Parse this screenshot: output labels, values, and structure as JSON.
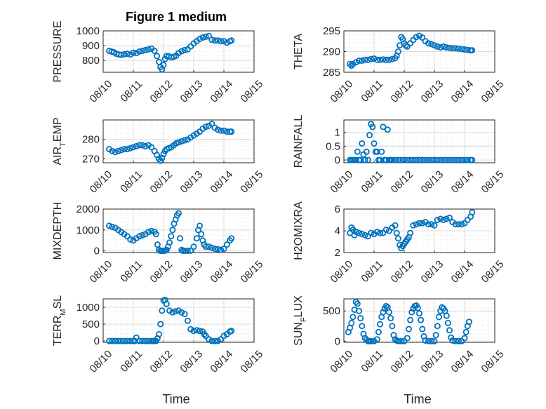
{
  "figure": {
    "title": "Figure 1 medium",
    "marker_color": "#0072BD",
    "x_ticks": [
      "08/10",
      "08/11",
      "08/12",
      "08/13",
      "08/14",
      "08/15"
    ],
    "xlabel": "Time"
  },
  "chart_data": [
    {
      "type": "scatter",
      "ylabel": "PRESSURE",
      "ylabel_sub": "",
      "ylabel_tail": "",
      "xlim": [
        0,
        5
      ],
      "ylim": [
        720,
        1000
      ],
      "yticks": [
        800,
        900,
        1000
      ],
      "x": [
        0.2,
        0.28,
        0.36,
        0.44,
        0.52,
        0.6,
        0.7,
        0.8,
        0.9,
        1.0,
        1.1,
        1.2,
        1.3,
        1.4,
        1.5,
        1.6,
        1.7,
        1.78,
        1.85,
        1.9,
        1.95,
        2.0,
        2.05,
        2.1,
        2.18,
        2.26,
        2.34,
        2.42,
        2.5,
        2.6,
        2.7,
        2.8,
        2.9,
        3.0,
        3.1,
        3.2,
        3.3,
        3.4,
        3.5,
        3.6,
        3.7,
        3.8,
        3.9,
        4.0,
        4.1,
        4.2,
        4.25
      ],
      "y": [
        865,
        860,
        855,
        845,
        840,
        838,
        842,
        845,
        840,
        852,
        850,
        860,
        865,
        870,
        875,
        880,
        865,
        830,
        790,
        755,
        740,
        770,
        810,
        830,
        828,
        820,
        825,
        832,
        850,
        862,
        870,
        875,
        895,
        915,
        930,
        945,
        955,
        960,
        965,
        940,
        935,
        935,
        930,
        930,
        920,
        930,
        935
      ]
    },
    {
      "type": "scatter",
      "ylabel": "THETA",
      "ylabel_sub": "",
      "ylabel_tail": "",
      "xlim": [
        0,
        5
      ],
      "ylim": [
        285,
        295
      ],
      "yticks": [
        285,
        290,
        295
      ],
      "x": [
        0.2,
        0.25,
        0.3,
        0.4,
        0.5,
        0.6,
        0.7,
        0.8,
        0.9,
        1.0,
        1.1,
        1.2,
        1.3,
        1.4,
        1.5,
        1.6,
        1.7,
        1.75,
        1.8,
        1.85,
        1.9,
        1.95,
        2.0,
        2.05,
        2.1,
        2.2,
        2.3,
        2.4,
        2.5,
        2.6,
        2.7,
        2.8,
        2.9,
        3.0,
        3.1,
        3.2,
        3.3,
        3.4,
        3.5,
        3.6,
        3.7,
        3.8,
        3.9,
        4.0,
        4.1,
        4.2,
        4.25
      ],
      "y": [
        287,
        286.6,
        287,
        287.4,
        287.8,
        287.8,
        288,
        288,
        288.2,
        288.3,
        288,
        288,
        288.1,
        288,
        288,
        288.2,
        288.4,
        289,
        290,
        291.5,
        293.5,
        293,
        292,
        291.5,
        291.2,
        292,
        292.8,
        293.5,
        293.8,
        293.4,
        292.5,
        292,
        291.8,
        291.5,
        291.2,
        291,
        291.2,
        291,
        290.9,
        290.8,
        290.8,
        290.7,
        290.6,
        290.5,
        290.4,
        290.3,
        290.3
      ]
    },
    {
      "type": "scatter",
      "ylabel": "AIR",
      "ylabel_sub": "T",
      "ylabel_tail": "EMP",
      "xlim": [
        0,
        5
      ],
      "ylim": [
        268,
        290
      ],
      "yticks": [
        270,
        280
      ],
      "x": [
        0.2,
        0.3,
        0.4,
        0.5,
        0.6,
        0.7,
        0.8,
        0.9,
        1.0,
        1.1,
        1.2,
        1.3,
        1.4,
        1.5,
        1.6,
        1.7,
        1.78,
        1.85,
        1.9,
        1.95,
        2.0,
        2.05,
        2.1,
        2.18,
        2.26,
        2.34,
        2.42,
        2.5,
        2.6,
        2.7,
        2.8,
        2.9,
        3.0,
        3.1,
        3.2,
        3.3,
        3.4,
        3.5,
        3.6,
        3.7,
        3.8,
        3.9,
        4.0,
        4.1,
        4.2,
        4.25
      ],
      "y": [
        275,
        274,
        273.5,
        274,
        274.5,
        275,
        275,
        275.5,
        276,
        276.5,
        277,
        277,
        276.5,
        277,
        276,
        274,
        272,
        270,
        269,
        270.5,
        272.5,
        274,
        275,
        275.5,
        276,
        277,
        278,
        278.5,
        279,
        279.5,
        280,
        281,
        282,
        283,
        284,
        285.5,
        286.5,
        287,
        288,
        286,
        285,
        284.5,
        284.5,
        284,
        284,
        284
      ]
    },
    {
      "type": "scatter",
      "ylabel": "RAINFALL",
      "ylabel_sub": "",
      "ylabel_tail": "",
      "xlim": [
        0,
        5
      ],
      "ylim": [
        -0.1,
        1.45
      ],
      "yticks": [
        0,
        0.5,
        1
      ],
      "x": [
        0.2,
        0.25,
        0.3,
        0.35,
        0.4,
        0.45,
        0.5,
        0.55,
        0.6,
        0.65,
        0.7,
        0.75,
        0.8,
        0.85,
        0.9,
        0.95,
        1.0,
        1.05,
        1.1,
        1.15,
        1.2,
        1.25,
        1.3,
        1.35,
        1.4,
        1.45,
        1.5,
        1.55,
        1.6,
        1.7,
        1.8,
        1.9,
        2.0,
        2.1,
        2.2,
        2.3,
        2.4,
        2.5,
        2.6,
        2.7,
        2.8,
        2.9,
        3.0,
        3.1,
        3.2,
        3.3,
        3.4,
        3.5,
        3.6,
        3.7,
        3.8,
        3.9,
        4.0,
        4.1,
        4.2,
        4.25
      ],
      "y": [
        0,
        0,
        0,
        0,
        0,
        0.3,
        0,
        0,
        0.6,
        0.2,
        0,
        0.3,
        0,
        0.9,
        1.3,
        1.2,
        0.6,
        0.3,
        0.3,
        0,
        0,
        0.3,
        1.2,
        0,
        0,
        1.1,
        0,
        0,
        0,
        0,
        0,
        0,
        0,
        0,
        0,
        0,
        0,
        0,
        0,
        0,
        0,
        0,
        0,
        0,
        0,
        0,
        0,
        0,
        0,
        0,
        0,
        0,
        0,
        0,
        0,
        0
      ]
    },
    {
      "type": "scatter",
      "ylabel": "MIXDEPTH",
      "ylabel_sub": "",
      "ylabel_tail": "",
      "xlim": [
        0,
        5
      ],
      "ylim": [
        -80,
        2000
      ],
      "yticks": [
        0,
        1000,
        2000
      ],
      "x": [
        0.2,
        0.3,
        0.4,
        0.5,
        0.6,
        0.7,
        0.8,
        0.9,
        1.0,
        1.1,
        1.2,
        1.3,
        1.4,
        1.5,
        1.6,
        1.7,
        1.75,
        1.8,
        1.85,
        1.9,
        1.95,
        2.0,
        2.05,
        2.1,
        2.15,
        2.2,
        2.25,
        2.3,
        2.35,
        2.4,
        2.45,
        2.5,
        2.55,
        2.6,
        2.65,
        2.7,
        2.8,
        2.9,
        3.0,
        3.1,
        3.15,
        3.2,
        3.25,
        3.3,
        3.35,
        3.4,
        3.5,
        3.6,
        3.7,
        3.8,
        3.9,
        4.0,
        4.1,
        4.2,
        4.25
      ],
      "y": [
        1200,
        1150,
        1100,
        1000,
        900,
        800,
        700,
        550,
        500,
        600,
        700,
        750,
        800,
        900,
        950,
        920,
        800,
        300,
        50,
        0,
        0,
        0,
        10,
        50,
        200,
        400,
        700,
        1000,
        1300,
        1500,
        1700,
        1800,
        600,
        50,
        0,
        0,
        0,
        10,
        200,
        600,
        1000,
        1200,
        800,
        500,
        300,
        200,
        200,
        150,
        100,
        80,
        50,
        100,
        300,
        500,
        600
      ]
    },
    {
      "type": "scatter",
      "ylabel": "H2OMIXRA",
      "ylabel_sub": "",
      "ylabel_tail": "",
      "xlim": [
        0,
        5
      ],
      "ylim": [
        2,
        6
      ],
      "yticks": [
        2,
        4,
        6
      ],
      "x": [
        0.2,
        0.25,
        0.3,
        0.35,
        0.4,
        0.5,
        0.6,
        0.7,
        0.8,
        0.9,
        1.0,
        1.1,
        1.2,
        1.3,
        1.4,
        1.5,
        1.6,
        1.7,
        1.75,
        1.8,
        1.85,
        1.9,
        1.95,
        2.0,
        2.05,
        2.1,
        2.15,
        2.2,
        2.3,
        2.4,
        2.5,
        2.6,
        2.7,
        2.8,
        2.9,
        3.0,
        3.1,
        3.2,
        3.3,
        3.4,
        3.5,
        3.6,
        3.7,
        3.8,
        3.9,
        4.0,
        4.1,
        4.2,
        4.25
      ],
      "y": [
        3.8,
        4.3,
        4.1,
        3.6,
        3.9,
        3.8,
        3.7,
        3.6,
        3.5,
        3.8,
        3.7,
        3.9,
        3.8,
        3.8,
        4.1,
        4,
        4.3,
        4.5,
        3.8,
        3.3,
        2.7,
        2.4,
        2.6,
        2.8,
        3,
        3.2,
        3.4,
        3.8,
        4.5,
        4.6,
        4.7,
        4.7,
        4.8,
        4.6,
        4.6,
        4.5,
        5,
        5.1,
        5,
        5.1,
        5.2,
        4.8,
        4.6,
        4.6,
        4.6,
        4.7,
        5,
        5.3,
        5.7
      ]
    },
    {
      "type": "scatter",
      "ylabel": "TERR",
      "ylabel_sub": "M",
      "ylabel_tail": "SL",
      "xlim": [
        0,
        5
      ],
      "ylim": [
        -40,
        1250
      ],
      "yticks": [
        0,
        500,
        1000
      ],
      "x": [
        0.2,
        0.3,
        0.4,
        0.5,
        0.6,
        0.7,
        0.8,
        0.9,
        1.0,
        1.05,
        1.1,
        1.2,
        1.3,
        1.4,
        1.5,
        1.6,
        1.65,
        1.7,
        1.75,
        1.8,
        1.85,
        1.9,
        1.95,
        2.0,
        2.05,
        2.1,
        2.2,
        2.3,
        2.4,
        2.5,
        2.6,
        2.7,
        2.8,
        2.9,
        3.0,
        3.1,
        3.2,
        3.3,
        3.35,
        3.4,
        3.5,
        3.6,
        3.7,
        3.8,
        3.9,
        4.0,
        4.1,
        4.2,
        4.25
      ],
      "y": [
        0,
        0,
        0,
        0,
        0,
        0,
        0,
        0,
        0,
        0,
        100,
        0,
        0,
        0,
        0,
        0,
        0,
        0,
        0,
        80,
        200,
        500,
        900,
        1200,
        1220,
        1100,
        900,
        850,
        880,
        900,
        850,
        800,
        600,
        350,
        300,
        320,
        300,
        280,
        200,
        150,
        50,
        0,
        0,
        0,
        50,
        150,
        200,
        280,
        300
      ]
    },
    {
      "type": "scatter",
      "ylabel": "SUN",
      "ylabel_sub": "F",
      "ylabel_tail": "LUX",
      "xlim": [
        0,
        5
      ],
      "ylim": [
        -20,
        700
      ],
      "yticks": [
        0,
        500
      ],
      "x": [
        0.15,
        0.2,
        0.25,
        0.3,
        0.35,
        0.4,
        0.45,
        0.5,
        0.55,
        0.6,
        0.65,
        0.7,
        0.75,
        0.8,
        0.85,
        0.9,
        1.0,
        1.1,
        1.15,
        1.2,
        1.25,
        1.3,
        1.35,
        1.4,
        1.45,
        1.5,
        1.55,
        1.6,
        1.65,
        1.7,
        1.75,
        1.8,
        1.9,
        2.0,
        2.1,
        2.15,
        2.2,
        2.25,
        2.3,
        2.35,
        2.4,
        2.45,
        2.5,
        2.55,
        2.6,
        2.65,
        2.7,
        2.8,
        2.9,
        3.0,
        3.05,
        3.1,
        3.15,
        3.2,
        3.25,
        3.3,
        3.35,
        3.4,
        3.45,
        3.5,
        3.55,
        3.6,
        3.7,
        3.8,
        3.9,
        4.0,
        4.05,
        4.1,
        4.15
      ],
      "y": [
        150,
        220,
        300,
        400,
        520,
        650,
        620,
        500,
        380,
        250,
        120,
        50,
        20,
        0,
        0,
        0,
        0,
        30,
        150,
        280,
        400,
        480,
        540,
        580,
        560,
        480,
        380,
        250,
        100,
        30,
        10,
        0,
        0,
        0,
        50,
        200,
        350,
        480,
        540,
        580,
        590,
        550,
        460,
        350,
        200,
        80,
        10,
        0,
        0,
        0,
        100,
        250,
        400,
        500,
        560,
        540,
        500,
        420,
        300,
        180,
        60,
        10,
        0,
        0,
        0,
        50,
        150,
        250,
        320
      ]
    }
  ]
}
